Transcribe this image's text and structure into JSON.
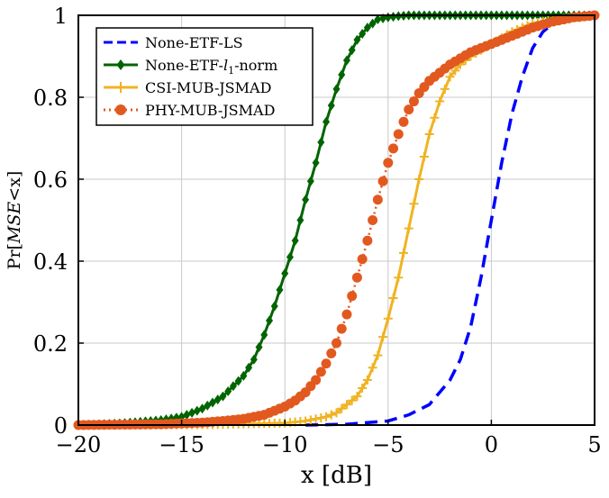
{
  "chart_data": {
    "type": "line",
    "title": "",
    "xlabel": "x [dB]",
    "ylabel": "Pr[MSE<x]",
    "xlim": [
      -20,
      5
    ],
    "ylim": [
      0,
      1
    ],
    "xticks": [
      "−20",
      "−15",
      "−10",
      "−5",
      "0",
      "5"
    ],
    "yticks": [
      "0",
      "0.2",
      "0.4",
      "0.6",
      "0.8",
      "1"
    ],
    "grid": true,
    "legend_position": "top-left",
    "series": [
      {
        "name": "None-ETF-LS",
        "color": "#0000ff",
        "style": "dashed",
        "marker": "none",
        "x": [
          -9,
          -7,
          -5,
          -4,
          -3,
          -2.5,
          -2,
          -1.5,
          -1,
          -0.5,
          0,
          0.5,
          1,
          1.5,
          2,
          2.5,
          3,
          4,
          5
        ],
        "y": [
          0,
          0.002,
          0.01,
          0.025,
          0.05,
          0.08,
          0.11,
          0.16,
          0.24,
          0.36,
          0.5,
          0.64,
          0.76,
          0.85,
          0.92,
          0.96,
          0.98,
          0.995,
          1.0
        ]
      },
      {
        "name": "None-ETF-l1-norm",
        "color": "#006400",
        "style": "solid",
        "marker": "diamond",
        "x": [
          -20,
          -18,
          -16,
          -15,
          -14,
          -13,
          -12,
          -11.5,
          -11,
          -10.5,
          -10,
          -9.5,
          -9,
          -8.5,
          -8,
          -7.5,
          -7,
          -6.5,
          -6,
          -5.5,
          -5,
          -4.5,
          -4,
          -3,
          -2,
          0,
          2,
          5
        ],
        "y": [
          0,
          0.004,
          0.012,
          0.02,
          0.04,
          0.07,
          0.12,
          0.16,
          0.22,
          0.29,
          0.37,
          0.45,
          0.55,
          0.64,
          0.74,
          0.82,
          0.89,
          0.94,
          0.97,
          0.99,
          0.995,
          0.998,
          1.0,
          1.0,
          1.0,
          1.0,
          1.0,
          1.0
        ]
      },
      {
        "name": "CSI-MUB-JSMAD",
        "color": "#f0b323",
        "style": "solid",
        "marker": "plus",
        "x": [
          -20,
          -14,
          -12,
          -10,
          -9,
          -8,
          -7.5,
          -7,
          -6.5,
          -6,
          -5.5,
          -5,
          -4.5,
          -4,
          -3.5,
          -3,
          -2.5,
          -2,
          -1.5,
          -1,
          0,
          1,
          2,
          3,
          4,
          5
        ],
        "y": [
          0,
          0.001,
          0.003,
          0.005,
          0.01,
          0.02,
          0.03,
          0.05,
          0.07,
          0.11,
          0.17,
          0.26,
          0.36,
          0.48,
          0.6,
          0.71,
          0.79,
          0.85,
          0.88,
          0.9,
          0.93,
          0.96,
          0.98,
          0.99,
          0.995,
          1.0
        ]
      },
      {
        "name": "PHY-MUB-JSMAD",
        "color": "#e2591f",
        "style": "dotted",
        "marker": "circle",
        "x": [
          -20,
          -16,
          -14,
          -13,
          -12,
          -11,
          -10,
          -9.5,
          -9,
          -8.5,
          -8,
          -7.5,
          -7,
          -6.5,
          -6,
          -5.5,
          -5,
          -4.5,
          -4,
          -3.5,
          -3,
          -2.5,
          -2,
          -1,
          0,
          1,
          2,
          3,
          4,
          5
        ],
        "y": [
          0,
          0.002,
          0.006,
          0.01,
          0.015,
          0.025,
          0.045,
          0.06,
          0.08,
          0.11,
          0.15,
          0.2,
          0.27,
          0.36,
          0.45,
          0.55,
          0.64,
          0.71,
          0.77,
          0.81,
          0.84,
          0.86,
          0.88,
          0.91,
          0.93,
          0.95,
          0.97,
          0.985,
          0.995,
          1.0
        ]
      }
    ]
  }
}
